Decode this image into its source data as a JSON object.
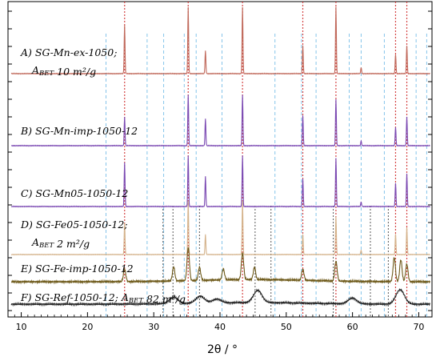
{
  "chart_data": {
    "type": "line",
    "xlabel": "2θ / °",
    "ylabel": "",
    "xlim": [
      8,
      72
    ],
    "x_ticks": [
      10,
      20,
      30,
      40,
      50,
      60,
      70
    ],
    "grid": false,
    "annotations": [
      {
        "id": "A",
        "lines": [
          "A) SG-Mn-ex-1050;",
          "A<sub>BET</sub> 10 m²/g"
        ],
        "text": "A) SG-Mn-ex-1050; ABET 10 m²/g"
      },
      {
        "id": "B",
        "lines": [
          "B) SG-Mn-imp-1050-12"
        ],
        "text": "B) SG-Mn-imp-1050-12"
      },
      {
        "id": "C",
        "lines": [
          "C) SG-Mn05-1050-12"
        ],
        "text": "C) SG-Mn05-1050-12"
      },
      {
        "id": "D",
        "lines": [
          "D) SG-Fe05-1050-12;",
          "A<sub>BET</sub> 2 m²/g"
        ],
        "text": "D) SG-Fe05-1050-12; ABET 2 m²/g"
      },
      {
        "id": "E",
        "lines": [
          "E) SG-Fe-imp-1050-12"
        ],
        "text": "E) SG-Fe-imp-1050-12"
      },
      {
        "id": "F",
        "lines": [
          "F) SG-Ref-1050-12; A<sub>BET</sub> 82 m²/g"
        ],
        "text": "F) SG-Ref-1050-12; ABET 82 m²/g"
      }
    ],
    "series": [
      {
        "id": "A",
        "color": "#c0685a",
        "peaks": [
          [
            25.6,
            0.95
          ],
          [
            35.2,
            1.3
          ],
          [
            37.8,
            0.45
          ],
          [
            43.4,
            1.3
          ],
          [
            52.5,
            0.55
          ],
          [
            57.5,
            1.3
          ],
          [
            61.3,
            0.12
          ],
          [
            66.5,
            0.38
          ],
          [
            68.2,
            0.55
          ]
        ]
      },
      {
        "id": "B",
        "color": "#7a48b2",
        "peaks": [
          [
            25.6,
            0.62
          ],
          [
            35.2,
            1.1
          ],
          [
            37.8,
            0.58
          ],
          [
            43.4,
            1.1
          ],
          [
            52.5,
            0.65
          ],
          [
            57.5,
            1.0
          ],
          [
            61.3,
            0.1
          ],
          [
            66.5,
            0.4
          ],
          [
            68.2,
            0.62
          ]
        ]
      },
      {
        "id": "C",
        "color": "#7a48b2",
        "peaks": [
          [
            25.6,
            0.95
          ],
          [
            35.2,
            1.1
          ],
          [
            37.8,
            0.65
          ],
          [
            43.4,
            1.1
          ],
          [
            52.5,
            0.6
          ],
          [
            57.5,
            1.05
          ],
          [
            61.3,
            0.1
          ],
          [
            66.5,
            0.5
          ],
          [
            68.2,
            0.7
          ]
        ]
      },
      {
        "id": "D",
        "color": "#d4b28a",
        "peaks": [
          [
            25.6,
            0.7
          ],
          [
            35.2,
            1.2
          ],
          [
            37.8,
            0.45
          ],
          [
            43.4,
            1.2
          ],
          [
            52.5,
            0.45
          ],
          [
            57.5,
            0.85
          ],
          [
            61.3,
            0.1
          ],
          [
            66.5,
            0.45
          ],
          [
            68.2,
            0.6
          ]
        ]
      },
      {
        "id": "E",
        "color": "#6e5a1a",
        "peaks": [
          [
            25.6,
            0.28
          ],
          [
            33.0,
            0.32
          ],
          [
            35.2,
            0.75
          ],
          [
            36.9,
            0.3
          ],
          [
            40.5,
            0.25
          ],
          [
            43.4,
            0.6
          ],
          [
            45.2,
            0.28
          ],
          [
            52.5,
            0.25
          ],
          [
            57.5,
            0.45
          ],
          [
            66.3,
            0.55
          ],
          [
            67.3,
            0.5
          ],
          [
            68.2,
            0.4
          ]
        ]
      },
      {
        "id": "F",
        "color": "#222222",
        "peaks": [
          [
            33.0,
            0.2
          ],
          [
            37.0,
            0.22
          ],
          [
            39.5,
            0.12
          ],
          [
            45.7,
            0.38
          ],
          [
            60.0,
            0.18
          ],
          [
            67.2,
            0.45
          ]
        ]
      }
    ],
    "reference_lines": [
      {
        "color": "#d03030",
        "style": "dotted",
        "positions": [
          25.6,
          35.2,
          43.4,
          52.5,
          57.5,
          66.5,
          68.2
        ]
      },
      {
        "color": "#4aa8e0",
        "style": "dashed",
        "positions": [
          22.8,
          29.0,
          31.5,
          34.6,
          36.4,
          40.3,
          48.3,
          52.3,
          54.5,
          59.5,
          61.3,
          64.8,
          69.6,
          71.2
        ]
      },
      {
        "color": "#333333",
        "style": "dotted",
        "positions": [
          31.4,
          32.9,
          36.9,
          45.3,
          47.7,
          57.1,
          62.7,
          65.4
        ]
      }
    ]
  }
}
